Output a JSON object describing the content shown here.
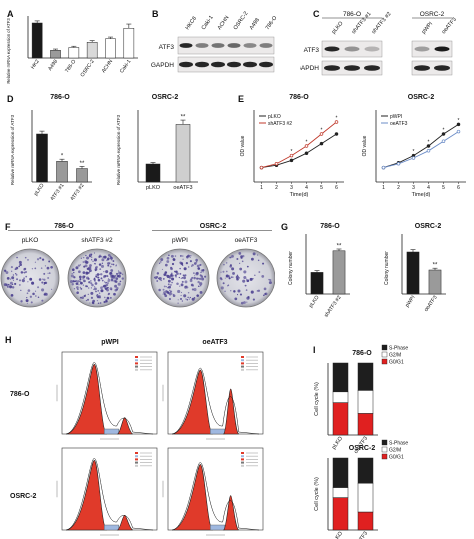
{
  "panels": {
    "A": {
      "letter": "A",
      "ylabel": "Relative mRNA expression of ATF3",
      "categories": [
        "HK2",
        "A498",
        "786-O",
        "OSRC-2",
        "ACHN",
        "Caki-1"
      ],
      "values": [
        1.0,
        0.22,
        0.3,
        0.45,
        0.55,
        0.85
      ],
      "ylim": [
        0,
        1.2
      ]
    },
    "B": {
      "letter": "B",
      "lanes": [
        "HKC8",
        "Caki-1",
        "ACHN",
        "OSRC-2",
        "A498",
        "786-O"
      ],
      "rows": [
        "ATF3",
        "GAPDH"
      ]
    },
    "C": {
      "letter": "C",
      "group1": "786-O",
      "group2": "OSRC-2",
      "lanes1": [
        "pLKO",
        "shATF3 #1",
        "shATF3 #2"
      ],
      "lanes2": [
        "pWPI",
        "oeATF3"
      ],
      "rows": [
        "ATF3",
        "GAPDH"
      ]
    },
    "D": {
      "letter": "D",
      "title1": "786-O",
      "title2": "OSRC-2",
      "ylabel": "Relative mRNA expression of ATF3",
      "cats1": [
        "pLKO",
        "shATF3 #1",
        "shATF3 #2"
      ],
      "vals1": [
        1.0,
        0.43,
        0.28
      ],
      "ylim1": [
        0,
        1.5
      ],
      "stars1": [
        "",
        "*",
        "**"
      ],
      "cats2": [
        "pLKO",
        "oeATF3"
      ],
      "vals2": [
        1.0,
        3.2
      ],
      "ylim2": [
        0,
        4
      ],
      "stars2": [
        "",
        "**"
      ]
    },
    "E": {
      "letter": "E",
      "title1": "786-O",
      "title2": "OSRC-2",
      "ylabel": "OD value",
      "xlabel": "Time(d)",
      "x": [
        1,
        2,
        3,
        4,
        5,
        6
      ],
      "series1": [
        {
          "name": "pLKO",
          "values": [
            0.3,
            0.35,
            0.45,
            0.6,
            0.8,
            1.0
          ]
        },
        {
          "name": "shATF3 #2",
          "values": [
            0.3,
            0.38,
            0.55,
            0.75,
            1.0,
            1.25
          ]
        }
      ],
      "series2": [
        {
          "name": "pWPI",
          "values": [
            0.3,
            0.4,
            0.55,
            0.75,
            1.0,
            1.2
          ]
        },
        {
          "name": "oeATF3",
          "values": [
            0.3,
            0.38,
            0.5,
            0.65,
            0.85,
            1.05
          ]
        }
      ],
      "stars": "*",
      "colors": {
        "s1": "#222222",
        "s2": "#c0392b",
        "s3": "#222222",
        "s4": "#6b8cc7"
      }
    },
    "F": {
      "letter": "F",
      "title1": "786-O",
      "title2": "OSRC-2",
      "labels": [
        "pLKO",
        "shATF3 #2",
        "pWPI",
        "oeATF3"
      ],
      "densities": [
        0.35,
        0.85,
        0.6,
        0.3
      ]
    },
    "G": {
      "letter": "G",
      "title1": "786-O",
      "title2": "OSRC-2",
      "ylabel": "Colony number",
      "cats1": [
        "pLKO",
        "shATF3 #2"
      ],
      "vals1": [
        90,
        180
      ],
      "ylim1": [
        0,
        250
      ],
      "stars1": [
        "",
        "**"
      ],
      "cats2": [
        "pWPI",
        "oeATF3"
      ],
      "vals2": [
        105,
        60
      ],
      "ylim2": [
        0,
        150
      ],
      "stars2": [
        "",
        "**"
      ]
    },
    "H": {
      "letter": "H",
      "col1": "pWPI",
      "col2": "oeATF3",
      "row1": "786-O",
      "row2": "OSRC-2"
    },
    "I": {
      "letter": "I",
      "title1": "786-O",
      "title2": "OSRC-2",
      "ylabel": "Cell cycle (%)",
      "legend": [
        "S-Phase",
        "G2/M",
        "G0/G1"
      ],
      "colors": {
        "s": "#1e1e1e",
        "g2m": "#ffffff",
        "g0g1": "#e02020"
      },
      "cats1": [
        "pLKO",
        "oeATF3"
      ],
      "stack1": [
        {
          "g0g1": 45,
          "g2m": 15,
          "s": 40
        },
        {
          "g0g1": 30,
          "g2m": 32,
          "s": 38
        }
      ],
      "cats2": [
        "pLKO",
        "oeATF3"
      ],
      "stack2": [
        {
          "g0g1": 45,
          "g2m": 14,
          "s": 41
        },
        {
          "g0g1": 25,
          "g2m": 40,
          "s": 35
        }
      ]
    }
  }
}
